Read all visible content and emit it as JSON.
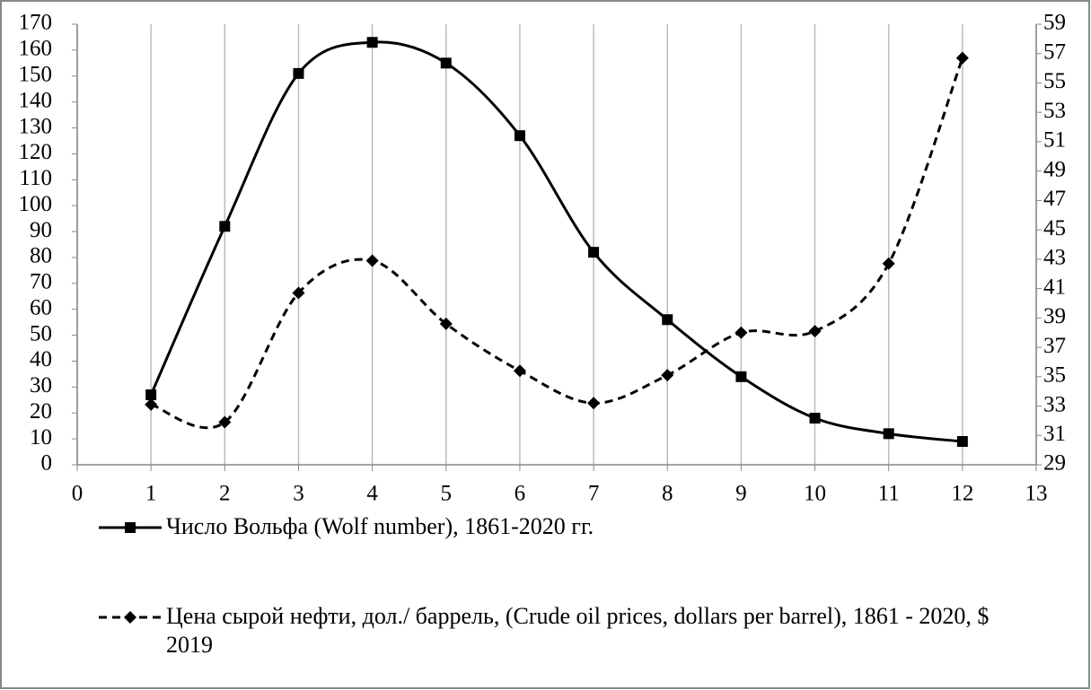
{
  "chart_data": {
    "type": "line",
    "x": [
      1,
      2,
      3,
      4,
      5,
      6,
      7,
      8,
      9,
      10,
      11,
      12
    ],
    "xlim": [
      0,
      13
    ],
    "xticks": [
      0,
      1,
      2,
      3,
      4,
      5,
      6,
      7,
      8,
      9,
      10,
      11,
      12,
      13
    ],
    "ylim": [
      0,
      170
    ],
    "yticks": [
      0,
      10,
      20,
      30,
      40,
      50,
      60,
      70,
      80,
      90,
      100,
      110,
      120,
      130,
      140,
      150,
      160,
      170
    ],
    "y2lim": [
      29,
      59
    ],
    "y2ticks": [
      29,
      31,
      33,
      35,
      37,
      39,
      41,
      43,
      45,
      47,
      49,
      51,
      53,
      55,
      57,
      59
    ],
    "grid": true,
    "legend": "bottom",
    "series": [
      {
        "name": "Число Вольфа (Wolf number), 1861-2020 гг.",
        "color": "#000000",
        "marker": "square",
        "dash": "solid",
        "axis": "y",
        "values": [
          27,
          92,
          151,
          163,
          155,
          127,
          82,
          56,
          34,
          18,
          12,
          9
        ]
      },
      {
        "name": "Цена сырой нефти, дол./ баррель, (Crude oil prices, dollars per barrel), 1861 - 2020, $ 2019",
        "color": "#000000",
        "marker": "diamond",
        "dash": "dashed",
        "axis": "y2",
        "values": [
          33.1,
          31.9,
          40.7,
          42.9,
          38.6,
          35.4,
          33.2,
          35.1,
          38.0,
          38.1,
          42.7,
          56.7
        ]
      }
    ]
  }
}
